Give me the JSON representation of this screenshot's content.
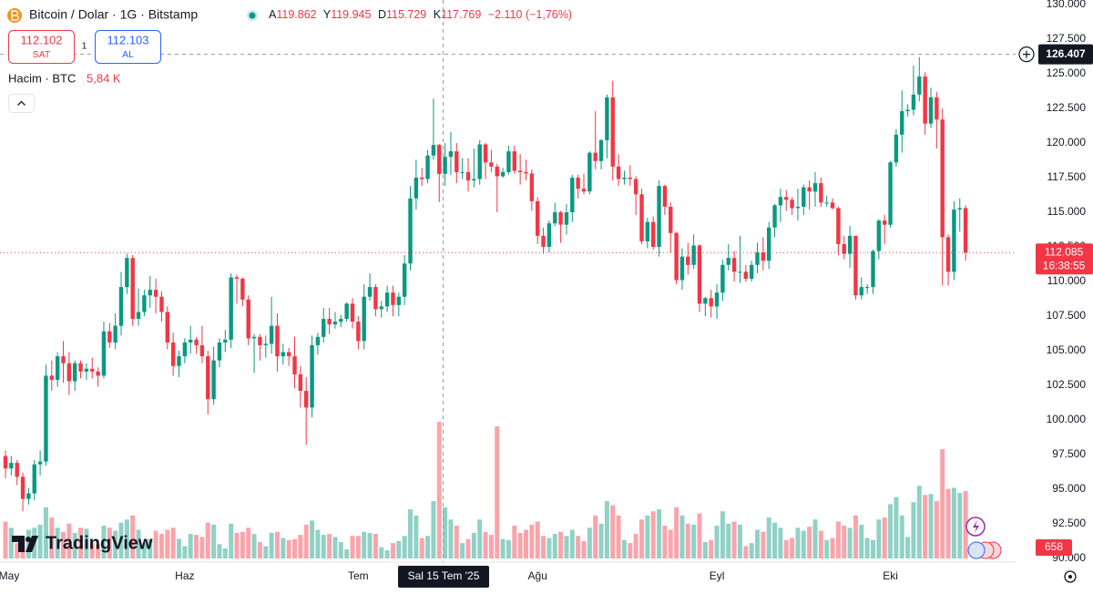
{
  "header": {
    "title": "Bitcoin / Dolar · 1G · Bitstamp",
    "legend_keys": [
      "A",
      "Y",
      "D",
      "K"
    ],
    "legend_values": [
      "119.862",
      "119.945",
      "115.729",
      "117.769"
    ],
    "change": "−2.110 (−1,76%)",
    "sell_price": "112.102",
    "sell_label": "SAT",
    "quantity": "1",
    "buy_price": "112.103",
    "buy_label": "AL",
    "volume_label": "Hacim · BTC",
    "volume_value": "5,84 K"
  },
  "branding": "TradingView",
  "chart_data": {
    "type": "candlestick",
    "categories": [
      "May",
      null,
      null,
      null,
      null,
      null,
      null,
      null,
      null,
      null,
      null,
      null,
      null,
      null,
      null,
      null,
      null,
      null,
      null,
      null,
      null,
      null,
      null,
      null,
      null,
      null,
      null,
      null,
      null,
      null,
      null,
      "Haz",
      null,
      null,
      null,
      null,
      null,
      null,
      null,
      null,
      null,
      null,
      null,
      null,
      null,
      null,
      null,
      null,
      null,
      null,
      null,
      null,
      null,
      null,
      null,
      null,
      null,
      null,
      null,
      null,
      null,
      "Tem",
      null,
      null,
      null,
      null,
      null,
      null,
      null,
      null,
      null,
      null,
      null,
      null,
      null,
      null,
      null,
      null,
      null,
      null,
      null,
      null,
      null,
      null,
      null,
      null,
      null,
      null,
      null,
      null,
      null,
      null,
      "Ağu",
      null,
      null,
      null,
      null,
      null,
      null,
      null,
      null,
      null,
      null,
      null,
      null,
      null,
      null,
      null,
      null,
      null,
      null,
      null,
      null,
      null,
      null,
      null,
      null,
      null,
      null,
      null,
      null,
      null,
      null,
      "Eyl",
      null,
      null,
      null,
      null,
      null,
      null,
      null,
      null,
      null,
      null,
      null,
      null,
      null,
      null,
      null,
      null,
      null,
      null,
      null,
      null,
      null,
      null,
      null,
      null,
      null,
      null,
      null,
      null,
      null,
      "Eki",
      null,
      null,
      null,
      null,
      null,
      null,
      null,
      null,
      null,
      null,
      null,
      null,
      null
    ],
    "open": [
      97400,
      96500,
      96900,
      95900,
      94300,
      94700,
      96800,
      97000,
      103200,
      102900,
      104600,
      104100,
      102800,
      104100,
      103500,
      103700,
      103500,
      103200,
      106400,
      105600,
      106800,
      109600,
      111700,
      107300,
      107800,
      109000,
      109400,
      108900,
      107800,
      105600,
      103900,
      104600,
      105600,
      105800,
      105400,
      104600,
      101500,
      104300,
      105600,
      105800,
      110300,
      110200,
      108700,
      105900,
      106000,
      105400,
      105500,
      106800,
      104600,
      104900,
      104600,
      103300,
      102100,
      100900,
      105400,
      106000,
      107300,
      106900,
      107100,
      107300,
      108400,
      107100,
      105700,
      108900,
      109600,
      108000,
      108200,
      109200,
      108300,
      108900,
      111300,
      116000,
      117500,
      117400,
      119100,
      119862,
      117769,
      119000,
      119400,
      117900,
      117900,
      117300,
      117400,
      119900,
      118600,
      118300,
      117600,
      117900,
      119400,
      118000,
      117900,
      117800,
      115800,
      113300,
      112500,
      114200,
      115000,
      114100,
      115000,
      117500,
      116700,
      116500,
      119300,
      118700,
      120200,
      123300,
      118300,
      117400,
      117500,
      117400,
      116300,
      112900,
      114300,
      112500,
      116900,
      115400,
      113500,
      110100,
      111800,
      111200,
      112600,
      108400,
      108800,
      108200,
      109200,
      111200,
      111700,
      110700,
      110700,
      110200,
      111200,
      112100,
      111500,
      113900,
      115500,
      116100,
      115900,
      115300,
      115400,
      116800,
      116500,
      117100,
      115700,
      115700,
      115300,
      112700,
      112000,
      113300,
      109000,
      109600,
      109600,
      112200,
      114400,
      114100,
      118600,
      120600,
      122300,
      122400,
      123500,
      124800,
      121400,
      123300,
      121700,
      113200,
      110700,
      115200,
      115300
    ],
    "high": [
      97800,
      97400,
      97100,
      96200,
      95100,
      97100,
      97800,
      104000,
      104300,
      104900,
      105700,
      104900,
      104300,
      104300,
      104100,
      104500,
      103800,
      107100,
      107000,
      107700,
      110700,
      112000,
      111900,
      109500,
      109400,
      110400,
      110200,
      109300,
      108200,
      106300,
      105000,
      105900,
      106800,
      106000,
      106800,
      105000,
      105300,
      105900,
      106500,
      110600,
      110500,
      110300,
      109000,
      106200,
      106200,
      106100,
      108900,
      107700,
      105500,
      105200,
      106000,
      103900,
      103100,
      106100,
      106300,
      108100,
      108100,
      107800,
      107600,
      108500,
      108800,
      107500,
      109800,
      110600,
      109800,
      108600,
      109700,
      109700,
      109200,
      111900,
      116900,
      118800,
      118200,
      119500,
      123200,
      119945,
      120000,
      120800,
      120000,
      118900,
      118900,
      119600,
      120200,
      120000,
      119500,
      118500,
      118200,
      119800,
      119800,
      119200,
      118800,
      118100,
      116100,
      113900,
      114400,
      115700,
      115100,
      115600,
      117700,
      117700,
      117800,
      119400,
      122300,
      120300,
      123500,
      124500,
      119200,
      118000,
      118400,
      117600,
      116700,
      114600,
      114700,
      117300,
      117000,
      115700,
      113600,
      112400,
      112800,
      113400,
      112700,
      108900,
      109400,
      109800,
      111600,
      112700,
      112200,
      113300,
      111200,
      111500,
      112800,
      113200,
      114300,
      115600,
      116700,
      116600,
      116100,
      116700,
      117000,
      117300,
      117900,
      117500,
      116200,
      116000,
      115400,
      113300,
      114000,
      113300,
      110300,
      109800,
      112300,
      114500,
      114800,
      118700,
      121000,
      123800,
      122800,
      125600,
      126200,
      125100,
      124000,
      123700,
      122500,
      113400,
      115800,
      116000,
      115500
    ],
    "low": [
      95800,
      96000,
      95300,
      93400,
      93900,
      94200,
      96000,
      96700,
      102100,
      102400,
      102700,
      101800,
      102100,
      103000,
      102900,
      103000,
      102400,
      103000,
      105200,
      105100,
      106100,
      109100,
      106800,
      106800,
      107500,
      108100,
      107700,
      107100,
      105100,
      103200,
      103100,
      104100,
      104800,
      104800,
      104100,
      100400,
      101100,
      103800,
      104900,
      105200,
      108400,
      108200,
      105400,
      103400,
      104300,
      104500,
      104800,
      103500,
      104000,
      103900,
      102300,
      100900,
      98200,
      100200,
      104700,
      105600,
      106200,
      106600,
      106700,
      107100,
      106600,
      105100,
      105100,
      108600,
      107500,
      107400,
      107800,
      107500,
      107500,
      108300,
      110800,
      115200,
      116900,
      117100,
      118800,
      115729,
      116900,
      117700,
      117100,
      117400,
      116500,
      116800,
      117000,
      117400,
      117900,
      115000,
      117500,
      117700,
      117800,
      117000,
      117300,
      115100,
      112700,
      112000,
      112100,
      114000,
      112800,
      113400,
      114300,
      116000,
      116300,
      116300,
      118100,
      118100,
      118900,
      117300,
      116900,
      117000,
      116900,
      114800,
      112700,
      112400,
      112300,
      111800,
      114800,
      112100,
      109800,
      109400,
      110500,
      110900,
      107800,
      107500,
      107400,
      107300,
      108600,
      110800,
      110000,
      109900,
      110000,
      110000,
      110600,
      110800,
      110900,
      113200,
      114300,
      115100,
      114800,
      114400,
      114800,
      115200,
      115400,
      115400,
      115400,
      115200,
      111900,
      111600,
      111000,
      108700,
      108700,
      109100,
      109100,
      111600,
      112700,
      113900,
      118300,
      119300,
      121900,
      122000,
      123000,
      120600,
      121100,
      119600,
      109700,
      109700,
      110100,
      113600,
      111500
    ],
    "close": [
      96500,
      96900,
      95900,
      94300,
      94700,
      96800,
      97000,
      103200,
      102900,
      104600,
      104100,
      102800,
      104100,
      103500,
      103700,
      103500,
      103200,
      106400,
      105600,
      106800,
      109600,
      111700,
      107300,
      107800,
      109000,
      109400,
      108900,
      107800,
      105600,
      103900,
      104600,
      105600,
      105800,
      105400,
      104600,
      101500,
      104300,
      105600,
      105800,
      110300,
      110200,
      108700,
      105900,
      106000,
      105400,
      105500,
      106800,
      104600,
      104900,
      104600,
      103300,
      102100,
      100900,
      105400,
      106000,
      107300,
      106900,
      107100,
      107300,
      108400,
      107100,
      105700,
      108900,
      109600,
      108000,
      108200,
      109200,
      108300,
      108900,
      111300,
      116000,
      117500,
      117400,
      119100,
      119862,
      117769,
      119000,
      119400,
      117900,
      117900,
      117300,
      117400,
      119900,
      118600,
      118300,
      117600,
      117900,
      119400,
      118000,
      117900,
      117800,
      115800,
      113300,
      112500,
      114200,
      115000,
      114100,
      115000,
      117500,
      116700,
      116500,
      119300,
      118700,
      120200,
      123300,
      118300,
      117400,
      117500,
      117400,
      116300,
      112900,
      114300,
      112500,
      116900,
      115400,
      113500,
      110100,
      111800,
      111200,
      112600,
      108400,
      108800,
      108200,
      109200,
      111200,
      111700,
      110700,
      110700,
      110200,
      111200,
      112100,
      111500,
      113900,
      115500,
      116100,
      115900,
      115300,
      115400,
      116800,
      116500,
      117100,
      115700,
      115700,
      115300,
      112700,
      112000,
      113300,
      109000,
      109600,
      109600,
      112200,
      114400,
      114100,
      118600,
      120600,
      122300,
      122400,
      123500,
      124800,
      121400,
      123300,
      121700,
      113200,
      110700,
      115200,
      115300,
      112085
    ],
    "volume": [
      360,
      300,
      150,
      200,
      280,
      300,
      330,
      500,
      400,
      300,
      260,
      340,
      250,
      300,
      290,
      150,
      140,
      320,
      300,
      270,
      350,
      380,
      420,
      280,
      150,
      190,
      270,
      240,
      280,
      300,
      190,
      120,
      240,
      230,
      210,
      350,
      330,
      140,
      100,
      340,
      250,
      260,
      300,
      240,
      160,
      120,
      250,
      260,
      200,
      180,
      190,
      230,
      330,
      370,
      280,
      230,
      240,
      210,
      160,
      90,
      220,
      220,
      260,
      250,
      240,
      110,
      80,
      150,
      170,
      220,
      480,
      420,
      200,
      220,
      560,
      1334,
      500,
      380,
      320,
      150,
      190,
      250,
      380,
      260,
      230,
      1290,
      190,
      180,
      320,
      250,
      280,
      330,
      360,
      220,
      200,
      240,
      260,
      220,
      280,
      220,
      170,
      300,
      420,
      340,
      560,
      520,
      420,
      180,
      150,
      240,
      380,
      420,
      460,
      480,
      320,
      280,
      500,
      420,
      340,
      330,
      440,
      160,
      180,
      320,
      460,
      340,
      360,
      330,
      120,
      150,
      280,
      260,
      400,
      350,
      300,
      180,
      200,
      300,
      270,
      310,
      380,
      270,
      180,
      200,
      360,
      320,
      300,
      420,
      330,
      200,
      180,
      380,
      400,
      530,
      600,
      420,
      210,
      550,
      710,
      620,
      630,
      560,
      1067,
      680,
      690,
      640,
      658
    ],
    "up_color": "#089981",
    "down_color": "#f23645",
    "ylim": [
      90000,
      130000
    ],
    "yticks": [
      {
        "value": 90000,
        "label": "90.000"
      },
      {
        "value": 92500,
        "label": "92.500"
      },
      {
        "value": 95000,
        "label": "95.000"
      },
      {
        "value": 97500,
        "label": "97.500"
      },
      {
        "value": 100000,
        "label": "100.000"
      },
      {
        "value": 102500,
        "label": "102.500"
      },
      {
        "value": 105000,
        "label": "105.000"
      },
      {
        "value": 107500,
        "label": "107.500"
      },
      {
        "value": 110000,
        "label": "110.000"
      },
      {
        "value": 112500,
        "label": "112.500"
      },
      {
        "value": 115000,
        "label": "115.000"
      },
      {
        "value": 117500,
        "label": "117.500"
      },
      {
        "value": 120000,
        "label": "120.000"
      },
      {
        "value": 122500,
        "label": "122.500"
      },
      {
        "value": 125000,
        "label": "125.000"
      },
      {
        "value": 127500,
        "label": "127.500"
      },
      {
        "value": 130000,
        "label": "130.000"
      }
    ],
    "grid": false,
    "crosshair": {
      "price": {
        "value": 126407,
        "label": "126.407"
      },
      "date": "Sal 15 Tem '25"
    },
    "last_price_label": "112.085",
    "countdown": "16:38:55",
    "last_volume_label": "658"
  }
}
